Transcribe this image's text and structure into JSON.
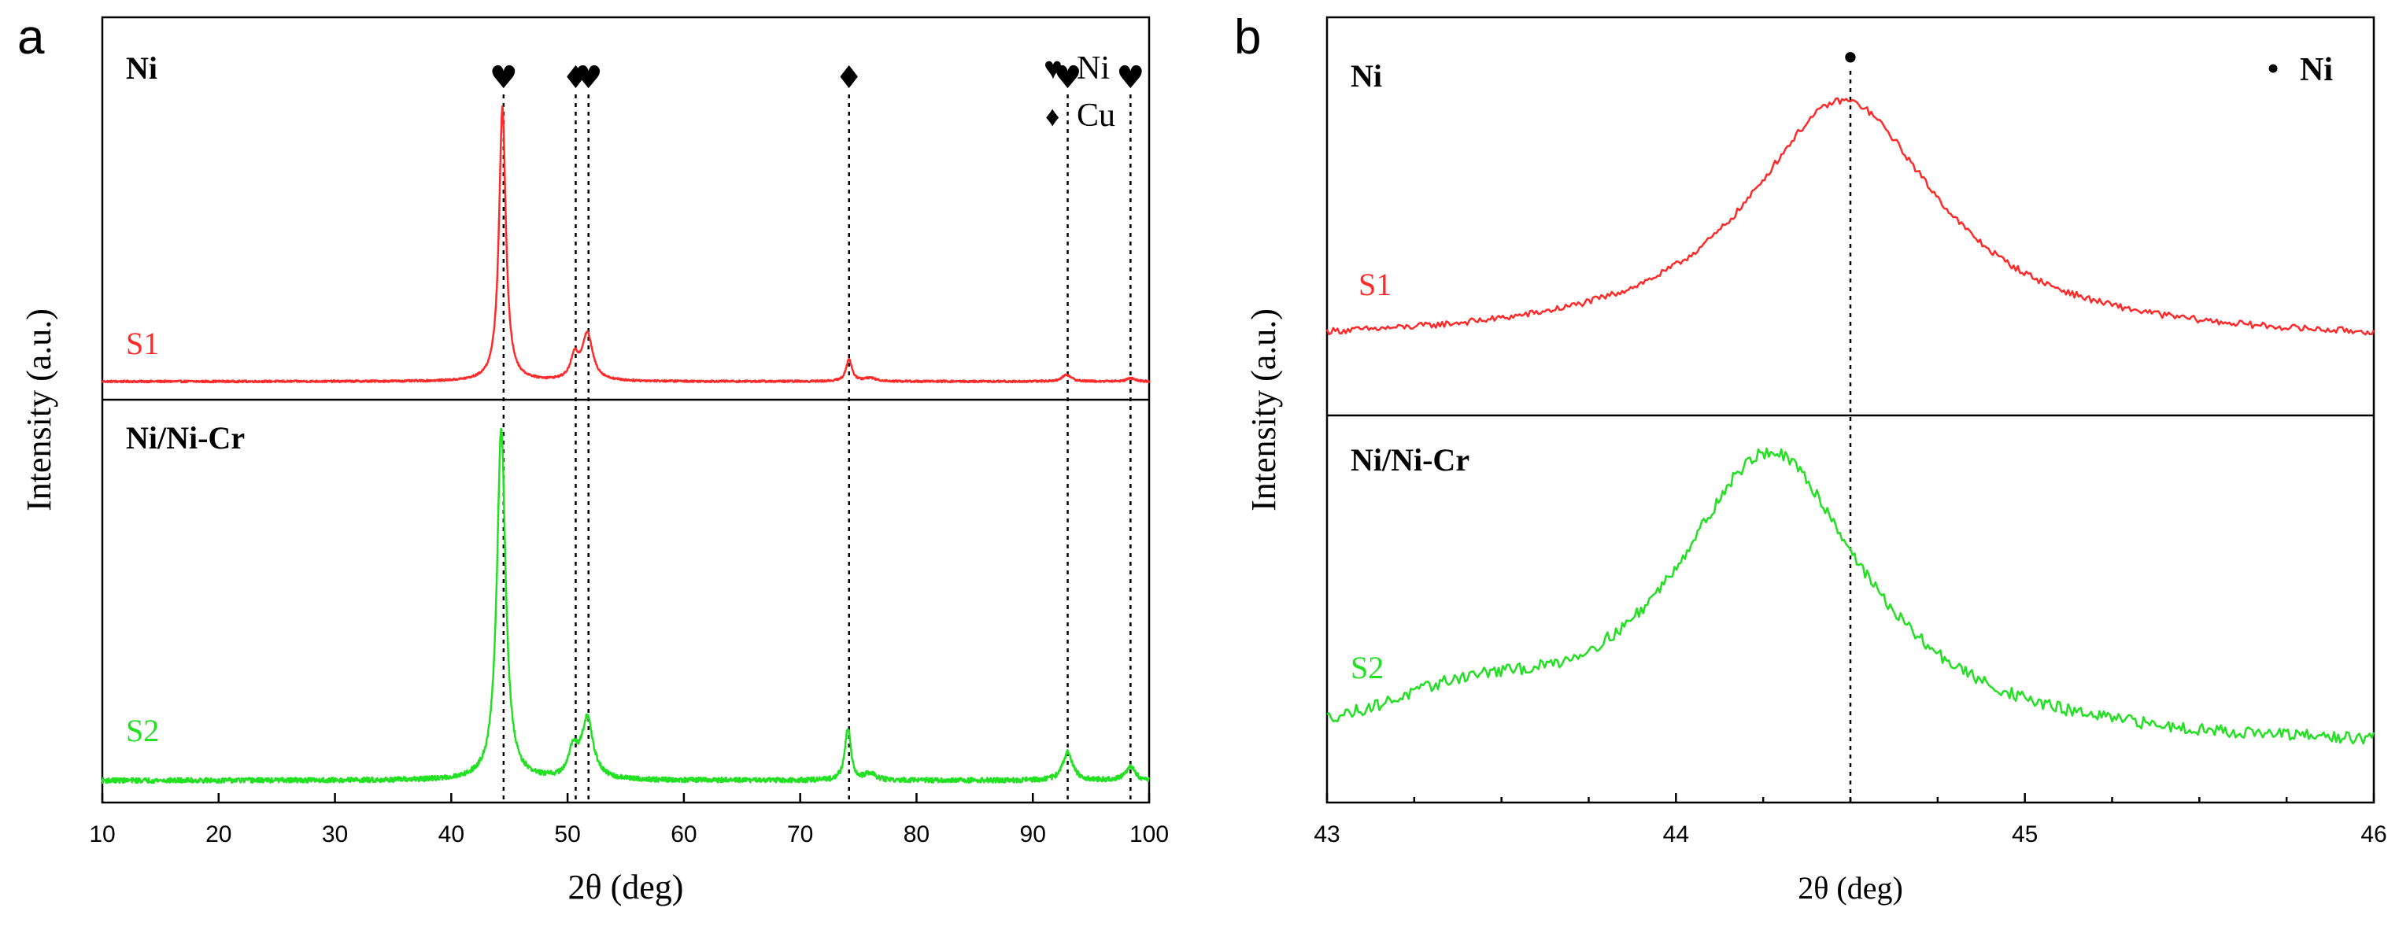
{
  "chart_data": [
    {
      "panel_label": "a",
      "type": "line",
      "xlabel": "2θ (deg)",
      "ylabel": "Intensity (a.u.)",
      "xlim": [
        10,
        100
      ],
      "xticks": [
        "10",
        "20",
        "30",
        "40",
        "50",
        "60",
        "70",
        "80",
        "90",
        "100"
      ],
      "legend": [
        {
          "symbol": "♥",
          "label": "Ni"
        },
        {
          "symbol": "♦",
          "label": "Cu"
        }
      ],
      "series": [
        {
          "name": "S1",
          "sample_label": "Ni",
          "color": "#ff2a2a",
          "baseline": 2,
          "noise": 0.35,
          "peaks": [
            {
              "x": 44.4,
              "height": 100,
              "width": 0.35
            },
            {
              "x": 50.6,
              "height": 8,
              "width": 0.4
            },
            {
              "x": 51.7,
              "height": 17,
              "width": 0.55
            },
            {
              "x": 74.2,
              "height": 8,
              "width": 0.3
            },
            {
              "x": 76.0,
              "height": 1.2,
              "width": 0.6
            },
            {
              "x": 92.9,
              "height": 2.5,
              "width": 0.45
            },
            {
              "x": 98.4,
              "height": 1.2,
              "width": 0.4
            }
          ]
        },
        {
          "name": "S2",
          "sample_label": "Ni/Ni-Cr",
          "color": "#22e022",
          "baseline": 3,
          "noise": 0.7,
          "peaks": [
            {
              "x": 44.3,
              "height": 100,
              "width": 0.45
            },
            {
              "x": 50.5,
              "height": 8,
              "width": 0.45
            },
            {
              "x": 51.7,
              "height": 17,
              "width": 0.6
            },
            {
              "x": 74.1,
              "height": 15,
              "width": 0.3
            },
            {
              "x": 76.0,
              "height": 2,
              "width": 0.5
            },
            {
              "x": 93.0,
              "height": 8,
              "width": 0.5
            },
            {
              "x": 98.4,
              "height": 4,
              "width": 0.45
            }
          ]
        }
      ],
      "reference_lines": [
        {
          "x": 44.5,
          "marker": "♥"
        },
        {
          "x": 50.7,
          "marker": "♦"
        },
        {
          "x": 51.8,
          "marker": "♥"
        },
        {
          "x": 74.2,
          "marker": "♦"
        },
        {
          "x": 93.0,
          "marker": "♥"
        },
        {
          "x": 98.4,
          "marker": "♥"
        }
      ]
    },
    {
      "panel_label": "b",
      "type": "line",
      "xlabel": "2θ (deg)",
      "ylabel": "Intensity (a.u.)",
      "xlim": [
        43,
        46
      ],
      "xticks": [
        "43",
        "44",
        "45",
        "46"
      ],
      "legend": [
        {
          "symbol": "•",
          "label": "Ni"
        }
      ],
      "series": [
        {
          "name": "S1",
          "sample_label": "Ni",
          "color": "#ff2a2a",
          "baseline": 5,
          "noise": 1.2,
          "peaks": [
            {
              "x": 44.48,
              "height": 90,
              "width": 0.33
            }
          ]
        },
        {
          "name": "S2",
          "sample_label": "Ni/Ni-Cr",
          "color": "#22e022",
          "baseline": 5,
          "noise": 1.5,
          "peaks": [
            {
              "x": 44.27,
              "height": 72,
              "width": 0.33
            },
            {
              "x": 43.4,
              "height": 9,
              "width": 0.3
            }
          ]
        }
      ],
      "reference_lines": [
        {
          "x": 44.5,
          "marker": "•"
        }
      ]
    }
  ]
}
